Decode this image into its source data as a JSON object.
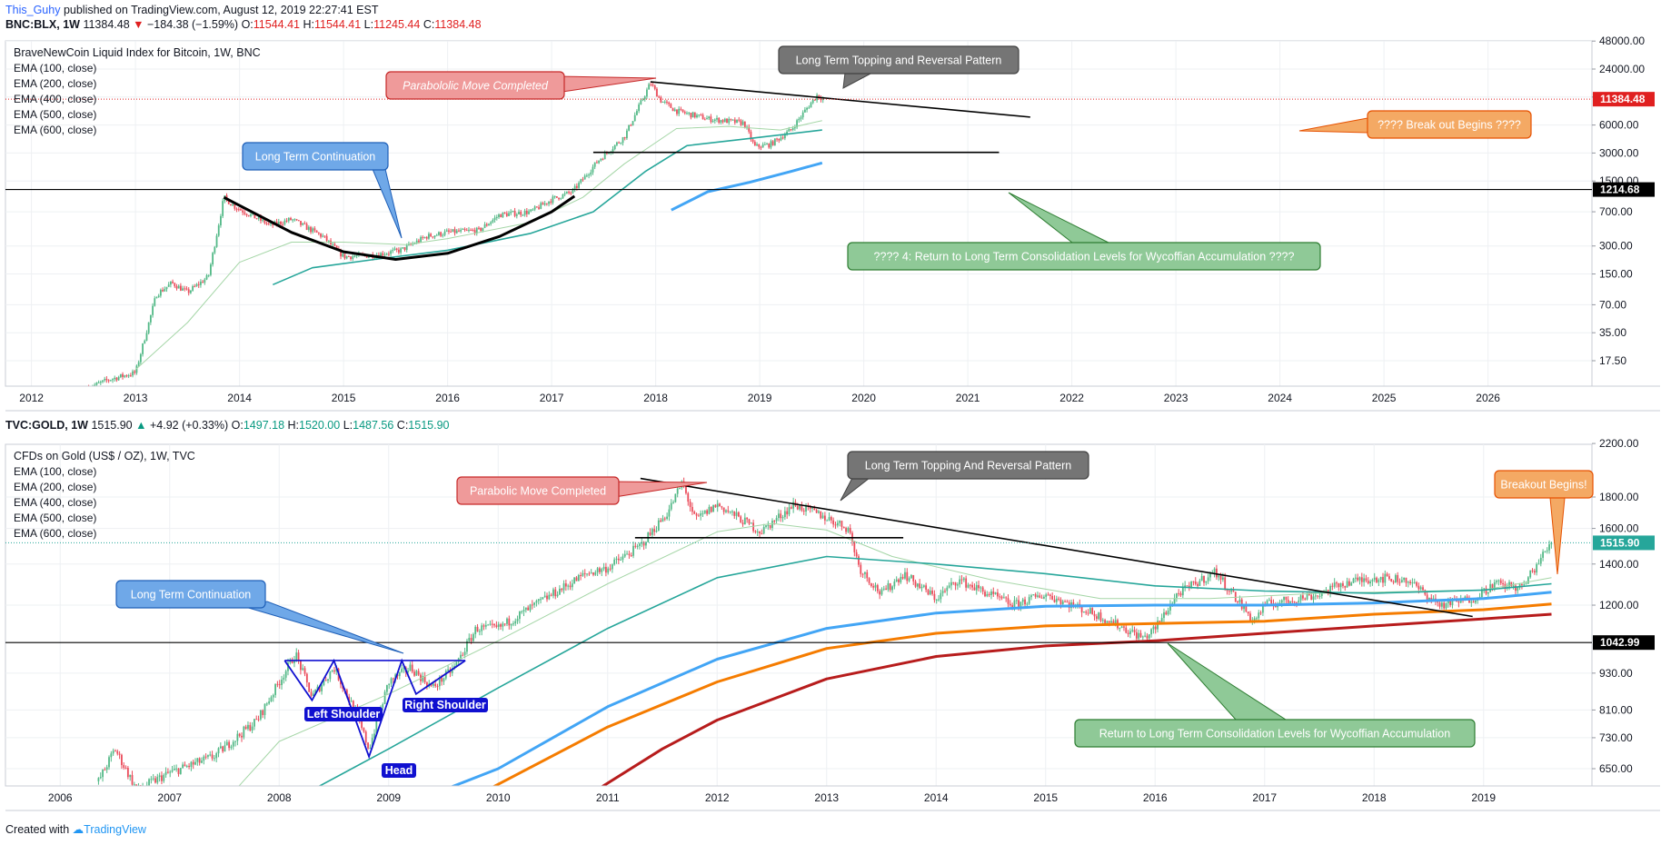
{
  "header": {
    "author": "This_Guhy",
    "published": "published on TradingView.com, August 12, 2019 22:27:41 EST"
  },
  "footer": {
    "created_with": "Created with",
    "brand": "TradingView"
  },
  "colors": {
    "up": "#53b987",
    "down": "#eb4d5c",
    "ema100": "#a5d6a7",
    "ema200": "#26a69a",
    "ema400": "#42a5f5",
    "ema500": "#f57c00",
    "ema600": "#b71c1c",
    "price_line_top": "#e02020",
    "price_line_bottom": "#26a69a",
    "pattern": "#1010d0"
  },
  "chart_data": [
    {
      "type": "candlestick",
      "symbol_line": {
        "symbol": "BNC:BLX, 1W",
        "last": "11384.48",
        "change": "−184.38 (−1.59%)",
        "o": "11544.41",
        "h": "11544.41",
        "l": "11245.44",
        "c": "11384.48"
      },
      "title": "BraveNewCoin Liquid Index for Bitcoin, 1W, BNC",
      "legend": [
        "EMA (100, close)",
        "EMA (200, close)",
        "EMA (400, close)",
        "EMA (500, close)",
        "EMA (600, close)"
      ],
      "y_scale": "log",
      "ylim": [
        10,
        50000
      ],
      "y_ticks": [
        "48000.00",
        "24000.00",
        "12000.00",
        "6000.00",
        "3000.00",
        "1500.00",
        "700.00",
        "300.00",
        "150.00",
        "70.00",
        "35.00",
        "17.50"
      ],
      "x_ticks": [
        "2012",
        "2013",
        "2014",
        "2015",
        "2016",
        "2017",
        "2018",
        "2019",
        "2020",
        "2021",
        "2022",
        "2023",
        "2024",
        "2025",
        "2026"
      ],
      "last_price_label": "11384.48",
      "level_label": "1214.68",
      "price_path": [
        [
          2012.55,
          9
        ],
        [
          2012.75,
          11
        ],
        [
          2013.0,
          13
        ],
        [
          2013.2,
          90
        ],
        [
          2013.35,
          120
        ],
        [
          2013.5,
          95
        ],
        [
          2013.7,
          140
        ],
        [
          2013.85,
          1000
        ],
        [
          2013.95,
          800
        ],
        [
          2014.1,
          650
        ],
        [
          2014.3,
          500
        ],
        [
          2014.5,
          580
        ],
        [
          2014.8,
          380
        ],
        [
          2015.0,
          230
        ],
        [
          2015.3,
          240
        ],
        [
          2015.55,
          270
        ],
        [
          2015.8,
          380
        ],
        [
          2016.0,
          420
        ],
        [
          2016.3,
          440
        ],
        [
          2016.5,
          650
        ],
        [
          2016.8,
          700
        ],
        [
          2017.0,
          950
        ],
        [
          2017.2,
          1150
        ],
        [
          2017.45,
          2500
        ],
        [
          2017.7,
          4500
        ],
        [
          2017.95,
          17000
        ],
        [
          2018.05,
          11000
        ],
        [
          2018.2,
          8500
        ],
        [
          2018.5,
          7000
        ],
        [
          2018.85,
          6300
        ],
        [
          2018.95,
          3500
        ],
        [
          2019.1,
          3700
        ],
        [
          2019.3,
          5300
        ],
        [
          2019.45,
          9000
        ],
        [
          2019.55,
          12500
        ],
        [
          2019.62,
          11384.48
        ]
      ],
      "ema_series": [
        {
          "name": "EMA (100, close)",
          "points": [
            [
              2013.0,
              14
            ],
            [
              2013.5,
              45
            ],
            [
              2014.0,
              200
            ],
            [
              2014.5,
              330
            ],
            [
              2015.0,
              330
            ],
            [
              2015.6,
              310
            ],
            [
              2016.0,
              360
            ],
            [
              2016.8,
              540
            ],
            [
              2017.3,
              1000
            ],
            [
              2017.7,
              2300
            ],
            [
              2018.2,
              5500
            ],
            [
              2018.7,
              5800
            ],
            [
              2019.2,
              5300
            ],
            [
              2019.6,
              6700
            ]
          ]
        },
        {
          "name": "EMA (200, close)",
          "points": [
            [
              2014.32,
              115
            ],
            [
              2014.7,
              175
            ],
            [
              2015.3,
              215
            ],
            [
              2016.0,
              270
            ],
            [
              2016.8,
              410
            ],
            [
              2017.4,
              700
            ],
            [
              2017.9,
              1900
            ],
            [
              2018.3,
              3600
            ],
            [
              2018.9,
              4300
            ],
            [
              2019.6,
              5300
            ]
          ]
        },
        {
          "name": "EMA (400, close)",
          "points": [
            [
              2018.15,
              730
            ],
            [
              2018.5,
              1150
            ],
            [
              2018.9,
              1450
            ],
            [
              2019.3,
              1900
            ],
            [
              2019.6,
              2350
            ]
          ]
        }
      ],
      "drawings": {
        "cup_curve": [
          [
            2013.85,
            1000
          ],
          [
            2014.5,
            420
          ],
          [
            2015.0,
            260
          ],
          [
            2015.5,
            215
          ],
          [
            2016.0,
            250
          ],
          [
            2016.5,
            380
          ],
          [
            2017.0,
            700
          ],
          [
            2017.22,
            1030
          ]
        ],
        "trendline": [
          [
            2017.95,
            17500
          ],
          [
            2021.6,
            7300
          ]
        ],
        "neckline": [
          [
            2017.4,
            3050
          ],
          [
            2021.3,
            3050
          ]
        ]
      },
      "annotations": {
        "parabolic": "Parabololic Move Completed",
        "topping": "Long Term Topping and Reversal Pattern",
        "continuation": "Long Term Continuation",
        "breakout": "???? Break out Begins ????",
        "return": "???? 4: Return to Long Term Consolidation Levels for Wycoffian Accumulation ????"
      }
    },
    {
      "type": "candlestick",
      "symbol_line": {
        "symbol": "TVC:GOLD, 1W",
        "last": "1515.90",
        "change": "+4.92 (+0.33%)",
        "o": "1497.18",
        "h": "1520.00",
        "l": "1487.56",
        "c": "1515.90"
      },
      "title": "CFDs on Gold (US$ / OZ), 1W, TVC",
      "legend": [
        "EMA (100, close)",
        "EMA (200, close)",
        "EMA (400, close)",
        "EMA (500, close)",
        "EMA (600, close)"
      ],
      "y_scale": "log",
      "ylim": [
        600,
        2300
      ],
      "y_ticks": [
        "2200.00",
        "1800.00",
        "1600.00",
        "1400.00",
        "1200.00",
        "930.00",
        "810.00",
        "730.00",
        "650.00"
      ],
      "x_ticks": [
        "2006",
        "2007",
        "2008",
        "2009",
        "2010",
        "2011",
        "2012",
        "2013",
        "2014",
        "2015",
        "2016",
        "2017",
        "2018",
        "2019"
      ],
      "last_price_label": "1515.90",
      "level_label": "1042.99",
      "price_path": [
        [
          2006.35,
          620
        ],
        [
          2006.5,
          700
        ],
        [
          2006.7,
          600
        ],
        [
          2007.0,
          640
        ],
        [
          2007.4,
          680
        ],
        [
          2007.8,
          780
        ],
        [
          2008.0,
          900
        ],
        [
          2008.15,
          1000
        ],
        [
          2008.3,
          850
        ],
        [
          2008.5,
          950
        ],
        [
          2008.7,
          800
        ],
        [
          2008.82,
          700
        ],
        [
          2009.0,
          900
        ],
        [
          2009.2,
          950
        ],
        [
          2009.4,
          880
        ],
        [
          2009.6,
          950
        ],
        [
          2009.8,
          1100
        ],
        [
          2010.0,
          1100
        ],
        [
          2010.4,
          1220
        ],
        [
          2010.8,
          1350
        ],
        [
          2011.0,
          1380
        ],
        [
          2011.3,
          1500
        ],
        [
          2011.55,
          1700
        ],
        [
          2011.68,
          1900
        ],
        [
          2011.8,
          1650
        ],
        [
          2012.0,
          1750
        ],
        [
          2012.4,
          1580
        ],
        [
          2012.7,
          1750
        ],
        [
          2012.95,
          1680
        ],
        [
          2013.2,
          1600
        ],
        [
          2013.3,
          1380
        ],
        [
          2013.5,
          1250
        ],
        [
          2013.7,
          1350
        ],
        [
          2014.0,
          1230
        ],
        [
          2014.2,
          1320
        ],
        [
          2014.7,
          1200
        ],
        [
          2015.0,
          1250
        ],
        [
          2015.5,
          1150
        ],
        [
          2015.9,
          1060
        ],
        [
          2016.0,
          1100
        ],
        [
          2016.2,
          1250
        ],
        [
          2016.55,
          1360
        ],
        [
          2016.9,
          1130
        ],
        [
          2017.0,
          1200
        ],
        [
          2017.5,
          1250
        ],
        [
          2017.7,
          1300
        ],
        [
          2018.0,
          1330
        ],
        [
          2018.3,
          1320
        ],
        [
          2018.6,
          1200
        ],
        [
          2018.9,
          1230
        ],
        [
          2019.1,
          1300
        ],
        [
          2019.35,
          1280
        ],
        [
          2019.5,
          1410
        ],
        [
          2019.62,
          1515.9
        ]
      ],
      "ema_series": [
        {
          "name": "EMA (100, close)",
          "points": [
            [
              2007.6,
              600
            ],
            [
              2008.0,
              720
            ],
            [
              2009.0,
              860
            ],
            [
              2010.0,
              1050
            ],
            [
              2011.0,
              1300
            ],
            [
              2012.0,
              1580
            ],
            [
              2012.5,
              1630
            ],
            [
              2013.0,
              1590
            ],
            [
              2013.6,
              1440
            ],
            [
              2014.5,
              1320
            ],
            [
              2015.5,
              1230
            ],
            [
              2016.5,
              1230
            ],
            [
              2017.5,
              1255
            ],
            [
              2018.5,
              1265
            ],
            [
              2019.0,
              1270
            ],
            [
              2019.62,
              1330
            ]
          ]
        },
        {
          "name": "EMA (200, close)",
          "points": [
            [
              2008.3,
              600
            ],
            [
              2009.0,
              700
            ],
            [
              2010.0,
              880
            ],
            [
              2011.0,
              1100
            ],
            [
              2012.0,
              1330
            ],
            [
              2013.0,
              1440
            ],
            [
              2014.0,
              1400
            ],
            [
              2015.0,
              1350
            ],
            [
              2016.0,
              1290
            ],
            [
              2017.0,
              1265
            ],
            [
              2018.0,
              1255
            ],
            [
              2019.0,
              1270
            ],
            [
              2019.62,
              1300
            ]
          ]
        },
        {
          "name": "EMA (400, close)",
          "points": [
            [
              2009.5,
              600
            ],
            [
              2010.0,
              650
            ],
            [
              2011.0,
              820
            ],
            [
              2012.0,
              980
            ],
            [
              2013.0,
              1100
            ],
            [
              2014.0,
              1165
            ],
            [
              2015.0,
              1195
            ],
            [
              2016.0,
              1200
            ],
            [
              2017.0,
              1200
            ],
            [
              2018.0,
              1210
            ],
            [
              2019.0,
              1230
            ],
            [
              2019.62,
              1260
            ]
          ]
        },
        {
          "name": "EMA (500, close)",
          "points": [
            [
              2009.9,
              600
            ],
            [
              2011.0,
              760
            ],
            [
              2012.0,
              900
            ],
            [
              2013.0,
              1020
            ],
            [
              2014.0,
              1080
            ],
            [
              2015.0,
              1110
            ],
            [
              2016.0,
              1120
            ],
            [
              2017.0,
              1130
            ],
            [
              2018.0,
              1160
            ],
            [
              2019.0,
              1180
            ],
            [
              2019.62,
              1205
            ]
          ]
        },
        {
          "name": "EMA (600, close)",
          "points": [
            [
              2010.9,
              600
            ],
            [
              2011.5,
              700
            ],
            [
              2012.0,
              780
            ],
            [
              2013.0,
              910
            ],
            [
              2014.0,
              990
            ],
            [
              2015.0,
              1030
            ],
            [
              2016.0,
              1050
            ],
            [
              2017.0,
              1080
            ],
            [
              2018.0,
              1110
            ],
            [
              2019.0,
              1140
            ],
            [
              2019.62,
              1160
            ]
          ]
        }
      ],
      "drawings": {
        "trendline": [
          [
            2011.3,
            1930
          ],
          [
            2018.9,
            1150
          ]
        ],
        "neckline": [
          [
            2011.25,
            1545
          ],
          [
            2013.7,
            1545
          ]
        ],
        "hs_neck": [
          [
            2008.05,
            975
          ],
          [
            2009.7,
            975
          ]
        ],
        "head_and_shoulders": [
          [
            2008.05,
            975
          ],
          [
            2008.3,
            840
          ],
          [
            2008.5,
            975
          ],
          [
            2008.82,
            680
          ],
          [
            2009.12,
            975
          ],
          [
            2009.25,
            860
          ],
          [
            2009.7,
            975
          ]
        ]
      },
      "annotations": {
        "parabolic": "Parabolic Move Completed",
        "topping": "Long Term Topping And Reversal Pattern",
        "continuation": "Long Term Continuation",
        "breakout": "Breakout Begins!",
        "return": "Return to Long Term Consolidation Levels for Wycoffian Accumulation",
        "left_shoulder": "Left Shoulder",
        "head": "Head",
        "right_shoulder": "Right Shoulder"
      }
    }
  ]
}
